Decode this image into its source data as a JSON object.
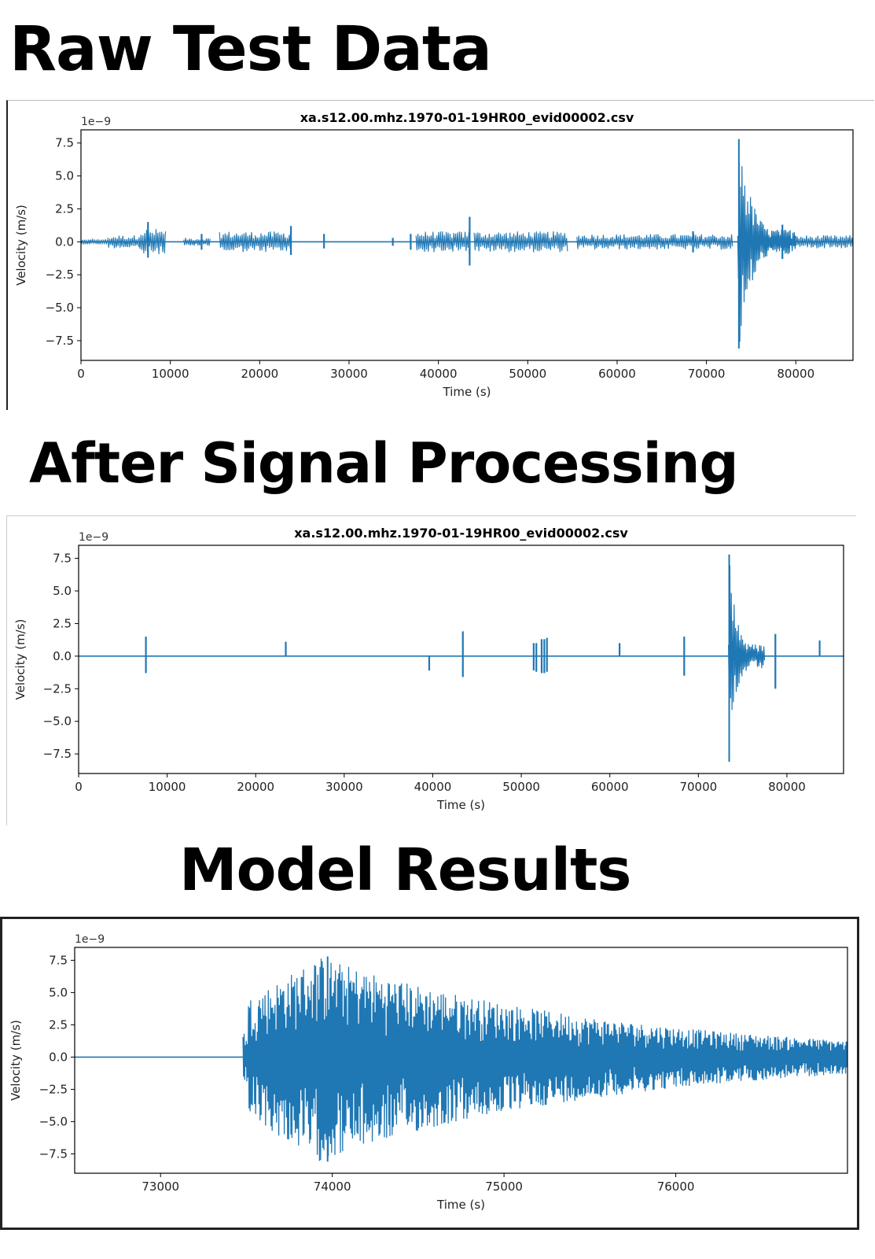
{
  "headings": {
    "raw": "Raw Test Data",
    "processed": "After Signal Processing",
    "model": "Model Results"
  },
  "colors": {
    "line": "#1f77b4",
    "axis": "#000000"
  },
  "chart_data": [
    {
      "type": "line",
      "title": "xa.s12.00.mhz.1970-01-19HR00_evid00002.csv",
      "xlabel": "Time (s)",
      "ylabel": "Velocity (m/s)",
      "offset_label": "1e−9",
      "xlim": [
        0,
        86400
      ],
      "ylim": [
        -9.0,
        8.5
      ],
      "xticks": [
        0,
        10000,
        20000,
        30000,
        40000,
        50000,
        60000,
        70000,
        80000
      ],
      "xtick_labels": [
        "0",
        "10000",
        "20000",
        "30000",
        "40000",
        "50000",
        "60000",
        "70000",
        "80000"
      ],
      "yticks": [
        7.5,
        5.0,
        2.5,
        0.0,
        -2.5,
        -5.0,
        -7.5
      ],
      "ytick_labels": [
        "7.5",
        "5.0",
        "2.5",
        "0.0",
        "−2.5",
        "−5.0",
        "−7.5"
      ],
      "grid": false,
      "series": [
        {
          "noise_segments": [
            {
              "x": [
                0,
                3000
              ],
              "amp": 0.2
            },
            {
              "x": [
                3000,
                6500
              ],
              "amp": 0.5
            },
            {
              "x": [
                6500,
                9500
              ],
              "amp": 1.0
            },
            {
              "x": [
                11500,
                14500
              ],
              "amp": 0.3
            },
            {
              "x": [
                15500,
                23500
              ],
              "amp": 0.8
            },
            {
              "x": [
                37500,
                43500
              ],
              "amp": 0.8
            },
            {
              "x": [
                44000,
                54500
              ],
              "amp": 0.8
            },
            {
              "x": [
                55500,
                73000
              ],
              "amp": 0.6
            },
            {
              "x": [
                75500,
                86400
              ],
              "amp": 0.5
            }
          ],
          "spikes": [
            {
              "x": 7500,
              "top": 1.5,
              "bottom": -1.2
            },
            {
              "x": 13500,
              "top": 0.6,
              "bottom": -0.6
            },
            {
              "x": 23500,
              "top": 1.2,
              "bottom": -1.0
            },
            {
              "x": 27200,
              "top": 0.6,
              "bottom": -0.5
            },
            {
              "x": 34900,
              "top": 0.3,
              "bottom": -0.3
            },
            {
              "x": 36900,
              "top": 0.6,
              "bottom": -0.6
            },
            {
              "x": 43500,
              "top": 1.0,
              "bottom": -0.9
            },
            {
              "x": 43500,
              "top": 1.9,
              "bottom": -1.8
            },
            {
              "x": 68500,
              "top": 0.8,
              "bottom": -0.8
            },
            {
              "x": 78500,
              "top": 1.3,
              "bottom": -1.3
            }
          ],
          "event": {
            "start": 73500,
            "end": 80000,
            "peak": 7.8,
            "trough": -8.1
          }
        }
      ]
    },
    {
      "type": "line",
      "title": "xa.s12.00.mhz.1970-01-19HR00_evid00002.csv",
      "xlabel": "Time (s)",
      "ylabel": "Velocity (m/s)",
      "offset_label": "1e−9",
      "xlim": [
        0,
        86400
      ],
      "ylim": [
        -9.0,
        8.5
      ],
      "xticks": [
        0,
        10000,
        20000,
        30000,
        40000,
        50000,
        60000,
        70000,
        80000
      ],
      "xtick_labels": [
        "0",
        "10000",
        "20000",
        "30000",
        "40000",
        "50000",
        "60000",
        "70000",
        "80000"
      ],
      "yticks": [
        7.5,
        5.0,
        2.5,
        0.0,
        -2.5,
        -5.0,
        -7.5
      ],
      "ytick_labels": [
        "7.5",
        "5.0",
        "2.5",
        "0.0",
        "−2.5",
        "−5.0",
        "−7.5"
      ],
      "grid": false,
      "series": [
        {
          "noise_segments": [],
          "spikes": [
            {
              "x": 7600,
              "top": 1.5,
              "bottom": -1.3
            },
            {
              "x": 23400,
              "top": 1.1,
              "bottom": 0.0
            },
            {
              "x": 39600,
              "top": 0.0,
              "bottom": -1.1
            },
            {
              "x": 43400,
              "top": 1.9,
              "bottom": -1.6
            },
            {
              "x": 51400,
              "top": 1.0,
              "bottom": -1.1
            },
            {
              "x": 51700,
              "top": 1.0,
              "bottom": -1.2
            },
            {
              "x": 52300,
              "top": 1.3,
              "bottom": -1.3
            },
            {
              "x": 52600,
              "top": 1.3,
              "bottom": -1.3
            },
            {
              "x": 52900,
              "top": 1.4,
              "bottom": -1.2
            },
            {
              "x": 61100,
              "top": 1.0,
              "bottom": 0.0
            },
            {
              "x": 68400,
              "top": 1.5,
              "bottom": -1.5
            },
            {
              "x": 78700,
              "top": 1.7,
              "bottom": -2.5
            },
            {
              "x": 83700,
              "top": 1.2,
              "bottom": 0.0
            }
          ],
          "event": {
            "start": 73400,
            "end": 77500,
            "peak": 7.8,
            "trough": -8.1
          }
        }
      ]
    },
    {
      "type": "line",
      "title": "",
      "xlabel": "Time (s)",
      "ylabel": "Velocity (m/s)",
      "offset_label": "1e−9",
      "xlim": [
        72500,
        77000
      ],
      "ylim": [
        -9.0,
        8.5
      ],
      "xticks": [
        73000,
        74000,
        75000,
        76000
      ],
      "xtick_labels": [
        "73000",
        "74000",
        "75000",
        "76000"
      ],
      "yticks": [
        7.5,
        5.0,
        2.5,
        0.0,
        -2.5,
        -5.0,
        -7.5
      ],
      "ytick_labels": [
        "7.5",
        "5.0",
        "2.5",
        "0.0",
        "−2.5",
        "−5.0",
        "−7.5"
      ],
      "grid": false,
      "series": [
        {
          "noise_segments": [],
          "spikes": [],
          "event": {
            "start": 73480,
            "end": 77000,
            "peak": 7.8,
            "trough": -8.1
          }
        }
      ]
    }
  ]
}
